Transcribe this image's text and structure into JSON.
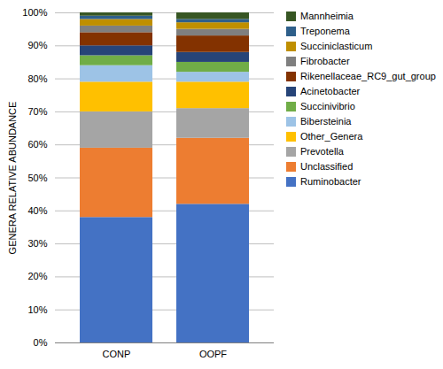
{
  "chart_data": {
    "type": "bar",
    "stacked": true,
    "categories": [
      "CONP",
      "OOPF"
    ],
    "series": [
      {
        "name": "Ruminobacter",
        "color": "#4472C4",
        "values": [
          38,
          42
        ]
      },
      {
        "name": "Unclassified",
        "color": "#ED7D31",
        "values": [
          21,
          20
        ]
      },
      {
        "name": "Prevotella",
        "color": "#A5A5A5",
        "values": [
          11,
          9
        ]
      },
      {
        "name": "Other_Genera",
        "color": "#FFC000",
        "values": [
          9,
          8
        ]
      },
      {
        "name": "Bibersteinia",
        "color": "#9DC3E6",
        "values": [
          5,
          3
        ]
      },
      {
        "name": "Succinivibrio",
        "color": "#70AD47",
        "values": [
          3,
          3
        ]
      },
      {
        "name": "Acinetobacter",
        "color": "#264478",
        "values": [
          3,
          3
        ]
      },
      {
        "name": "Rikenellaceae_RC9_gut_group",
        "color": "#833200",
        "values": [
          4,
          5
        ]
      },
      {
        "name": "Fibrobacter",
        "color": "#7F7F7F",
        "values": [
          2,
          2
        ]
      },
      {
        "name": "Succiniclasticum",
        "color": "#BF8F00",
        "values": [
          2,
          2
        ]
      },
      {
        "name": "Treponema",
        "color": "#2E5F8A",
        "values": [
          1,
          1
        ]
      },
      {
        "name": "Mannheimia",
        "color": "#375623",
        "values": [
          1,
          2
        ]
      }
    ],
    "ylabel": "GENERA RELATIVE ABUNDANCE",
    "ylim": [
      0,
      100
    ],
    "yticks": [
      {
        "value": 0,
        "label": "0%"
      },
      {
        "value": 10,
        "label": "10%"
      },
      {
        "value": 20,
        "label": "20%"
      },
      {
        "value": 30,
        "label": "30%"
      },
      {
        "value": 40,
        "label": "40%"
      },
      {
        "value": 50,
        "label": "50%"
      },
      {
        "value": 60,
        "label": "60%"
      },
      {
        "value": 70,
        "label": "70%"
      },
      {
        "value": 80,
        "label": "80%"
      },
      {
        "value": 90,
        "label": "90%"
      },
      {
        "value": 100,
        "label": "100%"
      }
    ],
    "grid": true,
    "legend": "upper right"
  }
}
